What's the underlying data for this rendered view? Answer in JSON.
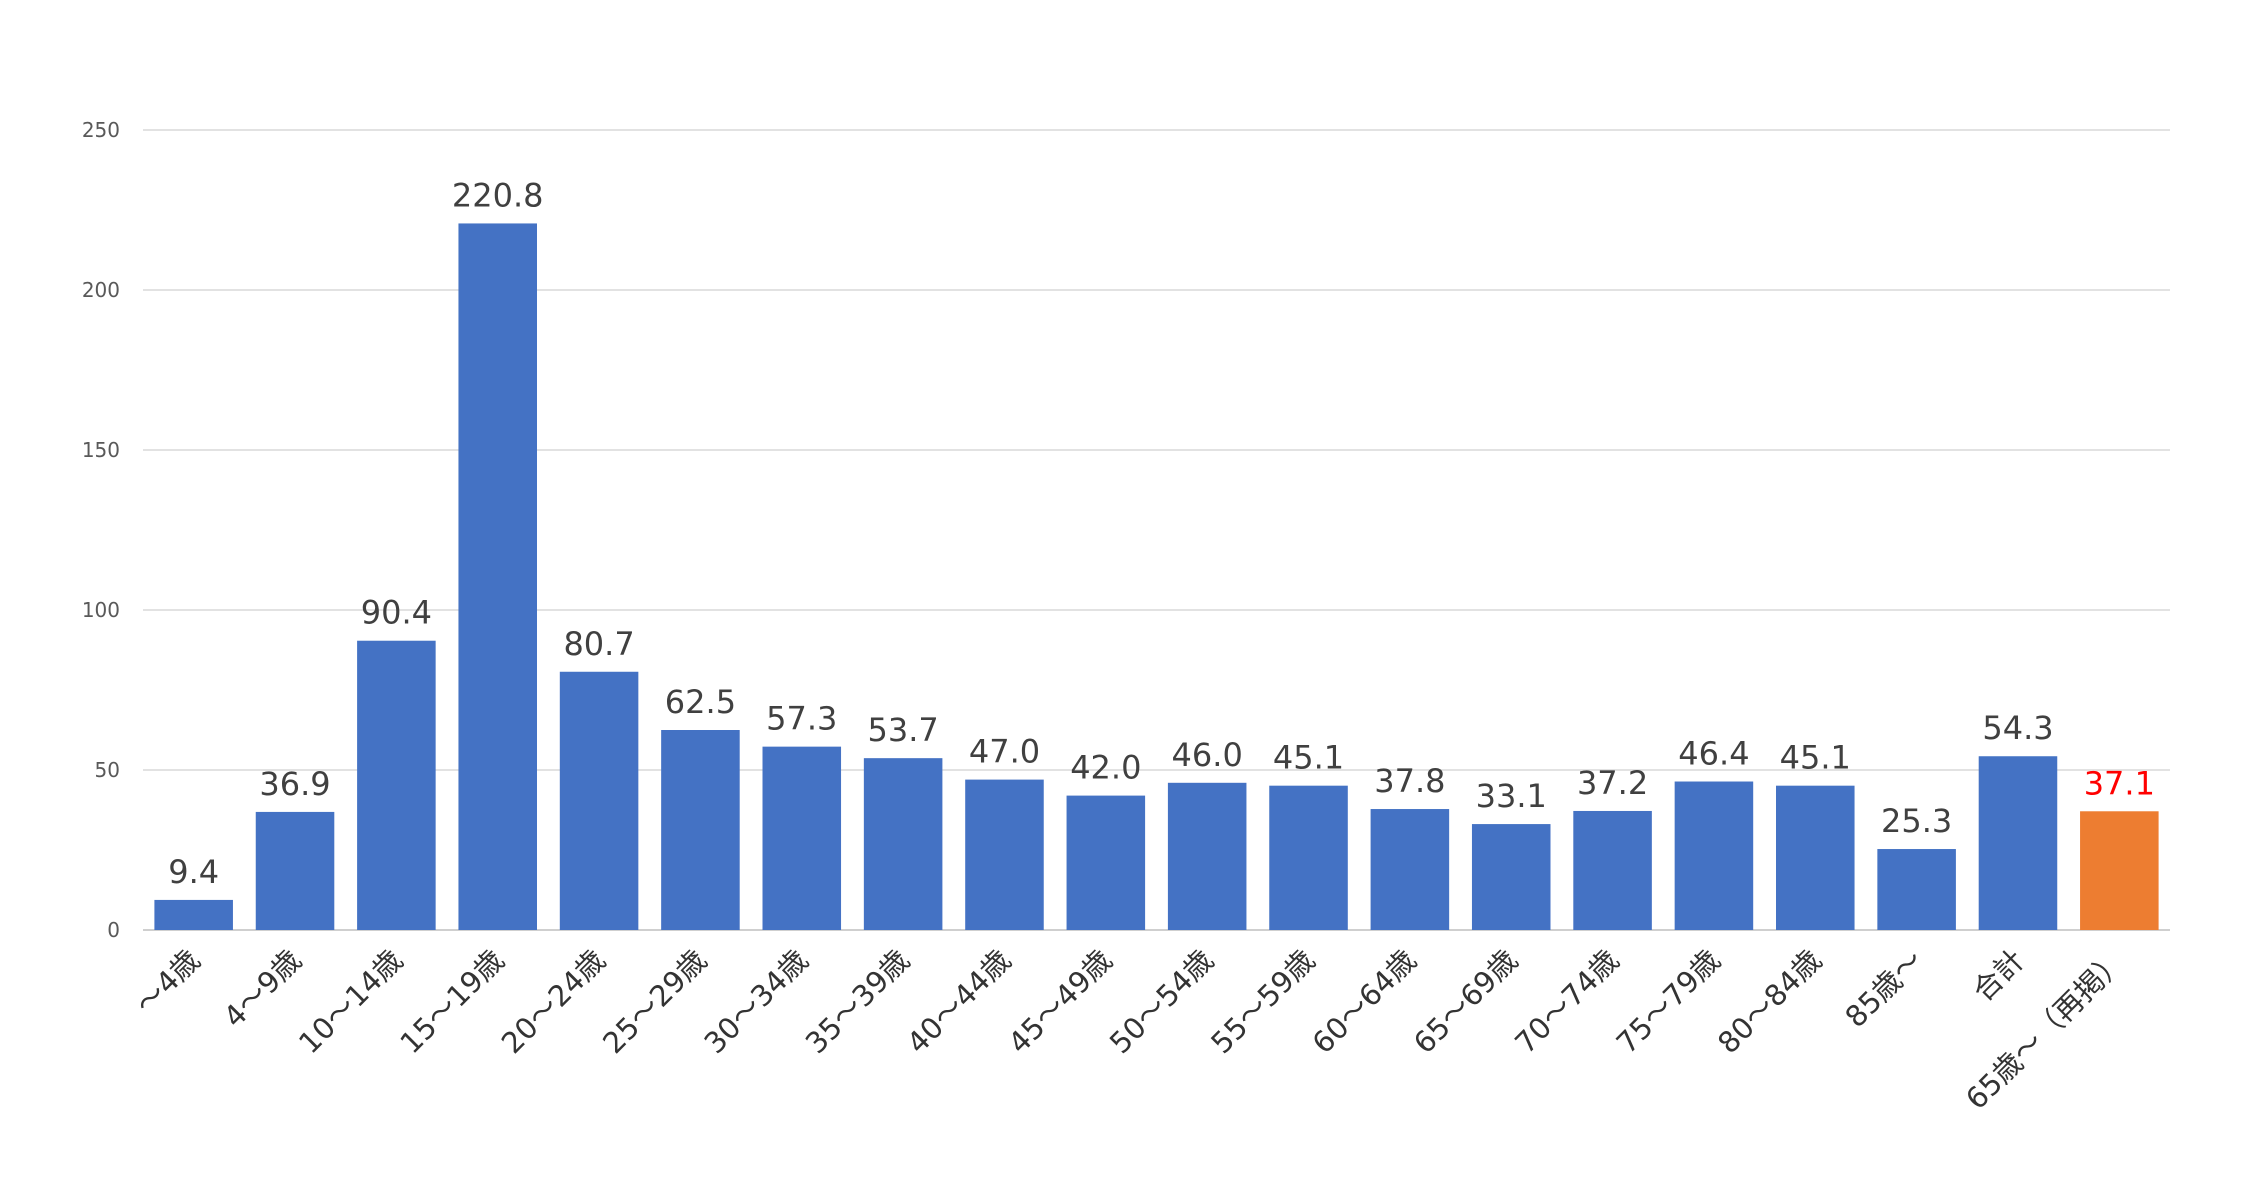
{
  "chart_data": {
    "type": "bar",
    "title": "",
    "xlabel": "",
    "ylabel": "",
    "ylim": [
      0,
      250
    ],
    "yticks": [
      "0",
      "50",
      "100",
      "150",
      "200",
      "250"
    ],
    "grid": true,
    "legend": "none",
    "categories": [
      "～4歳",
      "4～9歳",
      "10～14歳",
      "15～19歳",
      "20～24歳",
      "25～29歳",
      "30～34歳",
      "35～39歳",
      "40～44歳",
      "45～49歳",
      "50～54歳",
      "55～59歳",
      "60～64歳",
      "65～69歳",
      "70～74歳",
      "75～79歳",
      "80～84歳",
      "85歳～",
      "合計",
      "65歳～（再掲）"
    ],
    "values": [
      9.4,
      36.9,
      90.4,
      220.8,
      80.7,
      62.5,
      57.3,
      53.7,
      47.0,
      42.0,
      46.0,
      45.1,
      37.8,
      33.1,
      37.2,
      46.4,
      45.1,
      25.3,
      54.3,
      37.1
    ],
    "data_labels": [
      "9.4",
      "36.9",
      "90.4",
      "220.8",
      "80.7",
      "62.5",
      "57.3",
      "53.7",
      "47.0",
      "42.0",
      "46.0",
      "45.1",
      "37.8",
      "33.1",
      "37.2",
      "46.4",
      "45.1",
      "25.3",
      "54.3",
      "37.1"
    ],
    "bar_colors": [
      "#4472c4",
      "#4472c4",
      "#4472c4",
      "#4472c4",
      "#4472c4",
      "#4472c4",
      "#4472c4",
      "#4472c4",
      "#4472c4",
      "#4472c4",
      "#4472c4",
      "#4472c4",
      "#4472c4",
      "#4472c4",
      "#4472c4",
      "#4472c4",
      "#4472c4",
      "#4472c4",
      "#4472c4",
      "#ed7d31"
    ],
    "label_colors": [
      "#404040",
      "#404040",
      "#404040",
      "#404040",
      "#404040",
      "#404040",
      "#404040",
      "#404040",
      "#404040",
      "#404040",
      "#404040",
      "#404040",
      "#404040",
      "#404040",
      "#404040",
      "#404040",
      "#404040",
      "#404040",
      "#404040",
      "#ff0000"
    ]
  }
}
